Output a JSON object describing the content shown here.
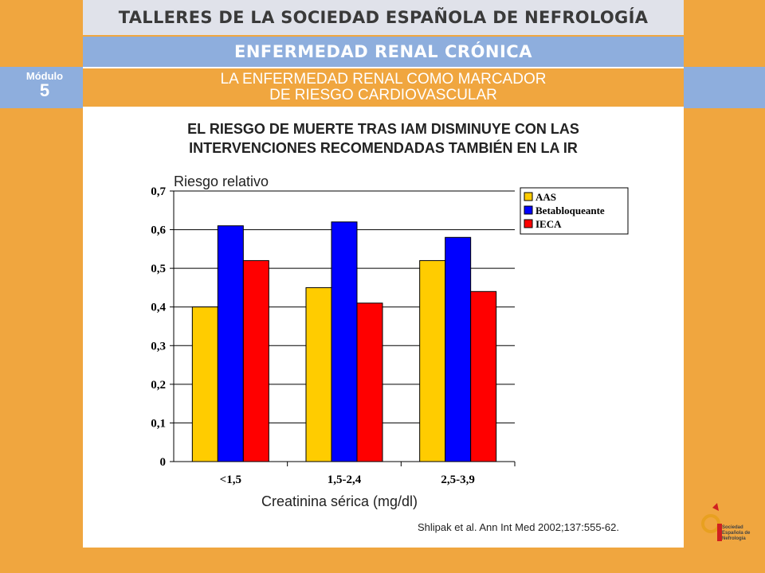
{
  "header": {
    "title": "TALLERES DE LA SOCIEDAD ESPAÑOLA DE NEFROLOGÍA",
    "subtitle": "ENFERMEDAD RENAL CRÓNICA",
    "module_label": "Módulo",
    "module_number": "5",
    "topic_line1": "LA ENFERMEDAD RENAL COMO MARCADOR",
    "topic_line2": "DE RIESGO CARDIOVASCULAR"
  },
  "slide": {
    "heading_line1": "EL RIESGO DE MUERTE TRAS IAM DISMINUYE CON LAS",
    "heading_line2": "INTERVENCIONES RECOMENDADAS TAMBIÉN EN LA IR",
    "citation": "Shlipak et al. Ann Int Med 2002;137:555-62."
  },
  "logo": {
    "line1": "Sociedad",
    "line2": "Española de",
    "line3": "Nefrología"
  },
  "chart_data": {
    "type": "bar",
    "categories": [
      "<1,5",
      "1,5-2,4",
      "2,5-3,9"
    ],
    "series": [
      {
        "name": "AAS",
        "color": "#ffcc00",
        "values": [
          0.4,
          0.45,
          0.52
        ]
      },
      {
        "name": "Betabloqueante",
        "color": "#0000ff",
        "values": [
          0.61,
          0.62,
          0.58
        ]
      },
      {
        "name": "IECA",
        "color": "#ff0000",
        "values": [
          0.52,
          0.41,
          0.44
        ]
      }
    ],
    "ylabel": "Riesgo relativo",
    "xlabel": "Creatinina sérica (mg/dl)",
    "ylim": [
      0,
      0.7
    ],
    "yticks": [
      "0",
      "0,1",
      "0,2",
      "0,3",
      "0,4",
      "0,5",
      "0,6",
      "0,7"
    ],
    "grid": true,
    "legend": "top-right"
  }
}
